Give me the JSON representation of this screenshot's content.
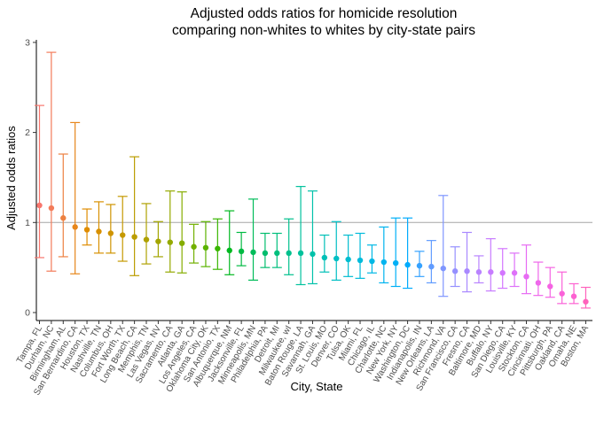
{
  "chart_data": {
    "type": "errorbar",
    "title_lines": [
      "Adjusted odds ratios for homicide resolution",
      "comparing non-whites to whites by city-state pairs"
    ],
    "xlabel": "City, State",
    "ylabel": "Adjusted odds ratios",
    "ylim": [
      0,
      3
    ],
    "yticks": [
      0,
      1,
      2,
      3
    ],
    "reference_line": 1,
    "grid": false,
    "legend": "none",
    "points": [
      {
        "city": "Tampa, FL",
        "or": 1.19,
        "low": 0.61,
        "high": 2.3
      },
      {
        "city": "Durham, NC",
        "or": 1.16,
        "low": 0.46,
        "high": 2.89
      },
      {
        "city": "Birmingham, AL",
        "or": 1.05,
        "low": 0.62,
        "high": 1.76
      },
      {
        "city": "San Bernardino, CA",
        "or": 0.95,
        "low": 0.43,
        "high": 2.11
      },
      {
        "city": "Houston, TX",
        "or": 0.92,
        "low": 0.75,
        "high": 1.15
      },
      {
        "city": "Nashville, TN",
        "or": 0.9,
        "low": 0.66,
        "high": 1.23
      },
      {
        "city": "Columbus, OH",
        "or": 0.88,
        "low": 0.66,
        "high": 1.2
      },
      {
        "city": "Fort Worth, TX",
        "or": 0.86,
        "low": 0.57,
        "high": 1.29
      },
      {
        "city": "Long Beach, CA",
        "or": 0.84,
        "low": 0.41,
        "high": 1.73
      },
      {
        "city": "Memphis, TN",
        "or": 0.81,
        "low": 0.54,
        "high": 1.21
      },
      {
        "city": "Las Vegas, NV",
        "or": 0.79,
        "low": 0.62,
        "high": 1.01
      },
      {
        "city": "Sacramento, CA",
        "or": 0.78,
        "low": 0.45,
        "high": 1.35
      },
      {
        "city": "Atlanta, GA",
        "or": 0.77,
        "low": 0.44,
        "high": 1.34
      },
      {
        "city": "Los Angeles, CA",
        "or": 0.73,
        "low": 0.55,
        "high": 0.98
      },
      {
        "city": "Oklahoma City, OK",
        "or": 0.72,
        "low": 0.51,
        "high": 1.01
      },
      {
        "city": "San Antonio, TX",
        "or": 0.71,
        "low": 0.48,
        "high": 1.04
      },
      {
        "city": "Albuquerque, NM",
        "or": 0.69,
        "low": 0.42,
        "high": 1.13
      },
      {
        "city": "Jacksonville, FL",
        "or": 0.68,
        "low": 0.52,
        "high": 0.89
      },
      {
        "city": "Minneapolis, MN",
        "or": 0.67,
        "low": 0.36,
        "high": 1.26
      },
      {
        "city": "Philadelphia, PA",
        "or": 0.66,
        "low": 0.5,
        "high": 0.88
      },
      {
        "city": "Detroit, MI",
        "or": 0.66,
        "low": 0.5,
        "high": 0.88
      },
      {
        "city": "Milwaukee, wI",
        "or": 0.66,
        "low": 0.42,
        "high": 1.04
      },
      {
        "city": "Baton Rouge, LA",
        "or": 0.66,
        "low": 0.31,
        "high": 1.4
      },
      {
        "city": "Savannah, GA",
        "or": 0.65,
        "low": 0.32,
        "high": 1.35
      },
      {
        "city": "St. Louis, MO",
        "or": 0.61,
        "low": 0.45,
        "high": 0.86
      },
      {
        "city": "Denver, CO",
        "or": 0.6,
        "low": 0.36,
        "high": 1.01
      },
      {
        "city": "Tulsa, OK",
        "or": 0.59,
        "low": 0.4,
        "high": 0.86
      },
      {
        "city": "Miami, FL",
        "or": 0.58,
        "low": 0.38,
        "high": 0.88
      },
      {
        "city": "Chicago, IL",
        "or": 0.57,
        "low": 0.44,
        "high": 0.75
      },
      {
        "city": "Charlotte, NC",
        "or": 0.56,
        "low": 0.33,
        "high": 0.95
      },
      {
        "city": "New York, NY",
        "or": 0.55,
        "low": 0.29,
        "high": 1.05
      },
      {
        "city": "Washington, DC",
        "or": 0.53,
        "low": 0.27,
        "high": 1.05
      },
      {
        "city": "Indianapolis, IN",
        "or": 0.52,
        "low": 0.4,
        "high": 0.68
      },
      {
        "city": "New Orleans, LA",
        "or": 0.51,
        "low": 0.33,
        "high": 0.8
      },
      {
        "city": "Richmond, VA",
        "or": 0.49,
        "low": 0.18,
        "high": 1.3
      },
      {
        "city": "San Francisco, CA",
        "or": 0.46,
        "low": 0.29,
        "high": 0.73
      },
      {
        "city": "Fresno, CA",
        "or": 0.46,
        "low": 0.23,
        "high": 0.89
      },
      {
        "city": "Baltimore, MD",
        "or": 0.45,
        "low": 0.33,
        "high": 0.63
      },
      {
        "city": "Buffalo, NY",
        "or": 0.45,
        "low": 0.24,
        "high": 0.82
      },
      {
        "city": "San Diego, CA",
        "or": 0.44,
        "low": 0.27,
        "high": 0.71
      },
      {
        "city": "Louisville, KY",
        "or": 0.44,
        "low": 0.29,
        "high": 0.66
      },
      {
        "city": "Stockton, CA",
        "or": 0.4,
        "low": 0.21,
        "high": 0.75
      },
      {
        "city": "Cincinnati, OH",
        "or": 0.33,
        "low": 0.19,
        "high": 0.56
      },
      {
        "city": "Pittsburgh, PA",
        "or": 0.29,
        "low": 0.17,
        "high": 0.5
      },
      {
        "city": "Oakland, CA",
        "or": 0.21,
        "low": 0.1,
        "high": 0.45
      },
      {
        "city": "Omaha, NE",
        "or": 0.18,
        "low": 0.1,
        "high": 0.32
      },
      {
        "city": "Boston, MA",
        "or": 0.12,
        "low": 0.05,
        "high": 0.28
      }
    ],
    "colors": [
      "#F8766D",
      "#F37B59",
      "#ED8141",
      "#E7861B",
      "#DF8C00",
      "#D89000",
      "#CF9400",
      "#C59900",
      "#BB9D00",
      "#AFA100",
      "#A3A500",
      "#95A900",
      "#85AD00",
      "#72B000",
      "#5BB300",
      "#39B600",
      "#00B81F",
      "#00BA42",
      "#00BC59",
      "#00BD6D",
      "#00BF7D",
      "#00C08D",
      "#00C19C",
      "#00C1AA",
      "#00C0B7",
      "#00BFC4",
      "#00BDD0",
      "#00BBDB",
      "#00B8E5",
      "#00B4EF",
      "#00B0F6",
      "#00ABFD",
      "#35A2FF",
      "#619CFF",
      "#7F96FF",
      "#9590FF",
      "#A989FF",
      "#B983FF",
      "#C77CFF",
      "#D376FF",
      "#DE71F9",
      "#E76BF3",
      "#EF67EB",
      "#F564E3",
      "#FA62D9",
      "#FD61D1",
      "#FF62BC"
    ]
  }
}
